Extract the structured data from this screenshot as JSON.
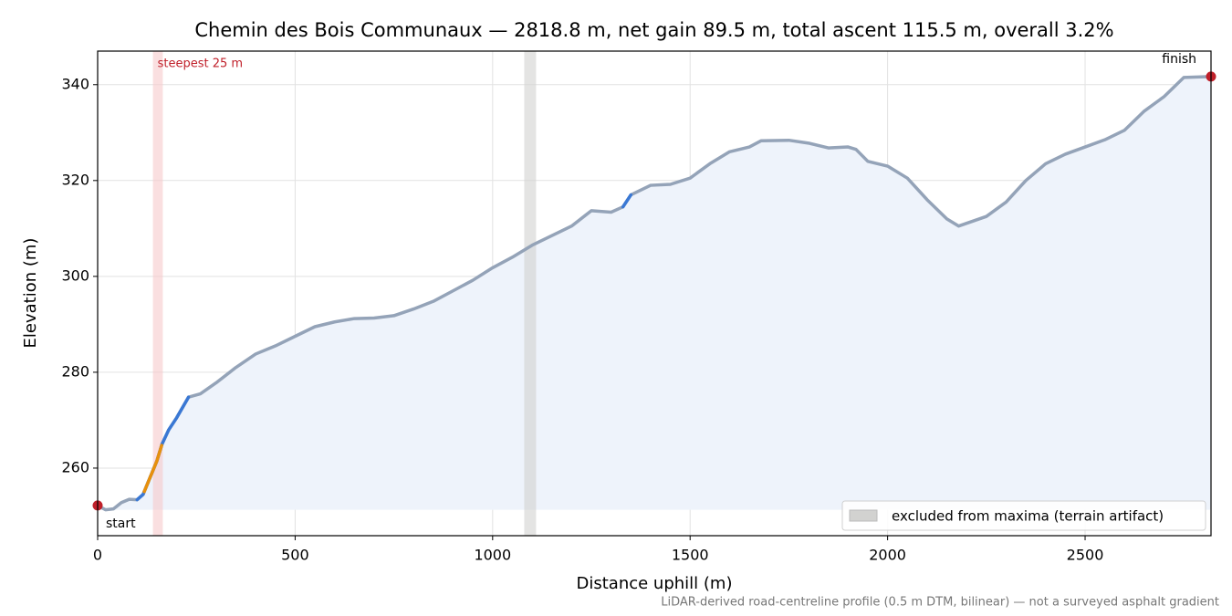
{
  "chart_data": {
    "type": "line",
    "title": "Chemin des Bois Communaux — 2818.8 m, net gain 89.5 m, total ascent 115.5 m, overall 3.2%",
    "x_label": "Distance uphill (m)",
    "y_label": "Elevation (m)",
    "footnote": "LiDAR-derived road-centreline profile (0.5 m DTM, bilinear) — not a surveyed asphalt gradient",
    "x": [
      0,
      20,
      40,
      60,
      80,
      100,
      115,
      130,
      150,
      163,
      180,
      200,
      230,
      260,
      300,
      350,
      400,
      450,
      500,
      550,
      600,
      650,
      700,
      750,
      800,
      850,
      900,
      950,
      1000,
      1050,
      1100,
      1150,
      1200,
      1250,
      1300,
      1330,
      1350,
      1400,
      1450,
      1500,
      1550,
      1600,
      1650,
      1680,
      1750,
      1800,
      1850,
      1900,
      1920,
      1950,
      2000,
      2050,
      2100,
      2150,
      2180,
      2250,
      2300,
      2350,
      2400,
      2450,
      2500,
      2550,
      2600,
      2650,
      2700,
      2750,
      2818.8
    ],
    "series": [
      {
        "color": "#94a3b8",
        "fill": "#eef3fb",
        "values": [
          252.2,
          251.3,
          251.5,
          252.8,
          253.5,
          253.4,
          254.5,
          257.5,
          261.5,
          265,
          268,
          270.5,
          274.8,
          275.5,
          277.8,
          281,
          283.8,
          285.5,
          287.5,
          289.5,
          290.5,
          291.2,
          291.3,
          291.8,
          293.2,
          294.8,
          297,
          299.2,
          301.8,
          304,
          306.5,
          308.5,
          310.5,
          313.7,
          313.4,
          314.5,
          317,
          319,
          319.2,
          320.5,
          323.5,
          326,
          327,
          328.3,
          328.4,
          327.8,
          326.8,
          327,
          326.5,
          324,
          323,
          320.5,
          316,
          312,
          310.5,
          312.5,
          315.5,
          320,
          323.5,
          325.5,
          327,
          328.5,
          330.5,
          334.5,
          337.5,
          341.5,
          341.7
        ]
      }
    ],
    "highlights": [
      {
        "x": [
          100,
          230
        ],
        "color": "#3a78d4"
      },
      {
        "x": [
          118,
          162
        ],
        "color": "#e8900c"
      },
      {
        "x": [
          1330,
          1350
        ],
        "color": "#3a78d4"
      }
    ],
    "spans": [
      {
        "x": [
          140,
          165
        ],
        "color": "#f6c9cc",
        "label": "steepest 25 m",
        "label_color": "#c0202a"
      },
      {
        "x": [
          1080,
          1110
        ],
        "color": "#d2d2d0",
        "legend": "excluded from maxima (terrain artifact)"
      }
    ],
    "endpoints": {
      "color": "#c0202a",
      "start": "start",
      "finish": "finish"
    },
    "xlim": [
      0,
      2818.8
    ],
    "ylim": [
      245.9,
      347.0
    ],
    "xticks": [
      0,
      500,
      1000,
      1500,
      2000,
      2500
    ],
    "yticks": [
      260,
      280,
      300,
      320,
      340
    ],
    "grid": true,
    "legend": "lower right"
  }
}
